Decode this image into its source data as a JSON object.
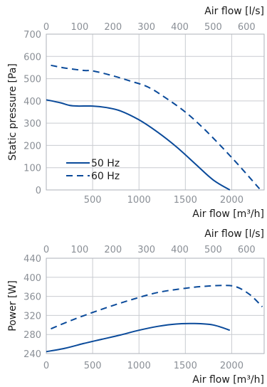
{
  "colors": {
    "curve": "#0a4a9a",
    "grid": "#c9ccd1",
    "tick": "#8a8f96",
    "frame": "#aeb2b8"
  },
  "chart_data": [
    {
      "type": "line",
      "xlabel": "Air flow [m³/h]",
      "ylabel": "Static pressure [Pa]",
      "top_xlabel": "Air flow [l/s]",
      "xlim": [
        0,
        2350
      ],
      "ylim": [
        0,
        700
      ],
      "x_ticks": [
        "500",
        "1000",
        "1500",
        "2000"
      ],
      "x_tick_values": [
        500,
        1000,
        1500,
        2000
      ],
      "y_ticks": [
        "0",
        "100",
        "200",
        "300",
        "400",
        "500",
        "600",
        "700"
      ],
      "y_tick_values": [
        0,
        100,
        200,
        300,
        400,
        500,
        600,
        700
      ],
      "top_ticks": [
        "0",
        "100",
        "200",
        "300",
        "400",
        "500",
        "600"
      ],
      "top_tick_values": [
        0,
        100,
        200,
        300,
        400,
        500,
        600
      ],
      "grid": true,
      "legend": "inside-lower-left",
      "series": [
        {
          "name": "50 Hz",
          "style": "solid",
          "x": [
            0,
            150,
            250,
            350,
            500,
            650,
            800,
            1000,
            1200,
            1400,
            1600,
            1800,
            1980
          ],
          "y": [
            405,
            392,
            380,
            377,
            377,
            370,
            355,
            315,
            260,
            195,
            120,
            45,
            0
          ]
        },
        {
          "name": "60 Hz",
          "style": "dashed",
          "x": [
            50,
            200,
            400,
            500,
            700,
            900,
            1100,
            1300,
            1500,
            1700,
            1900,
            2100,
            2300
          ],
          "y": [
            560,
            548,
            537,
            535,
            515,
            490,
            462,
            410,
            350,
            275,
            190,
            100,
            5
          ]
        }
      ]
    },
    {
      "type": "line",
      "xlabel": "Air flow [m³/h]",
      "ylabel": "Power [W]",
      "top_xlabel": "Air flow [l/s]",
      "xlim": [
        0,
        2350
      ],
      "ylim": [
        240,
        440
      ],
      "x_ticks": [
        "0",
        "500",
        "1000",
        "1500",
        "2000"
      ],
      "x_tick_values": [
        0,
        500,
        1000,
        1500,
        2000
      ],
      "y_ticks": [
        "240",
        "280",
        "320",
        "360",
        "400",
        "440"
      ],
      "y_tick_values": [
        240,
        280,
        320,
        360,
        400,
        440
      ],
      "top_ticks": [
        "0",
        "100",
        "200",
        "300",
        "400",
        "500",
        "600"
      ],
      "top_tick_values": [
        0,
        100,
        200,
        300,
        400,
        500,
        600
      ],
      "grid": true,
      "series": [
        {
          "name": "50 Hz",
          "style": "solid",
          "x": [
            0,
            200,
            400,
            600,
            800,
            1000,
            1200,
            1400,
            1600,
            1800,
            1980
          ],
          "y": [
            244,
            251,
            261,
            270,
            279,
            289,
            297,
            302,
            303,
            300,
            289
          ]
        },
        {
          "name": "60 Hz",
          "style": "dashed",
          "x": [
            50,
            300,
            600,
            900,
            1200,
            1500,
            1700,
            1900,
            2050,
            2200,
            2330
          ],
          "y": [
            292,
            312,
            333,
            352,
            368,
            377,
            381,
            383,
            380,
            363,
            338
          ]
        }
      ]
    }
  ]
}
